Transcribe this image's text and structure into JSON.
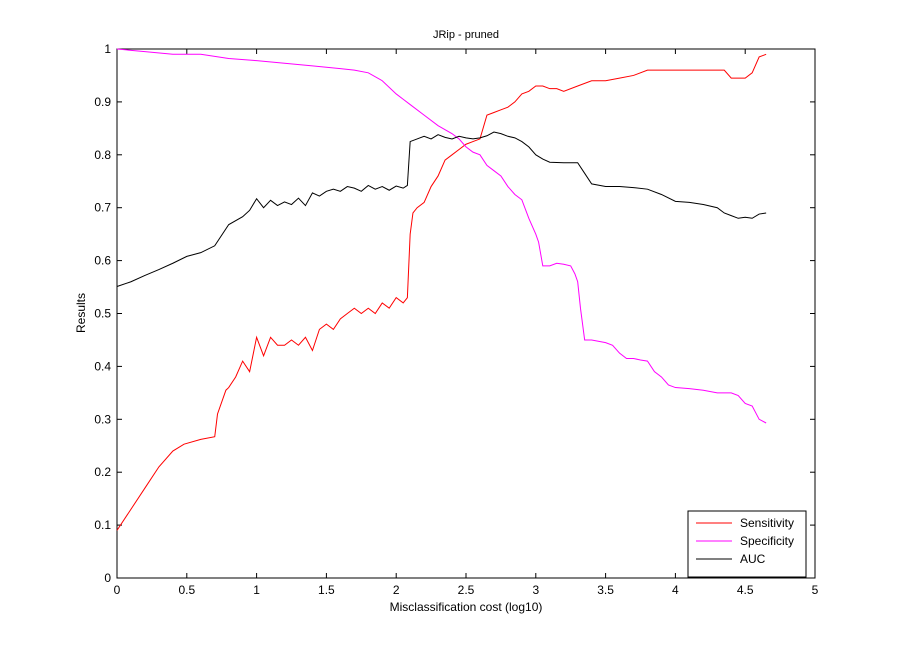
{
  "chart_data": {
    "type": "line",
    "title": "JRip - pruned",
    "xlabel": "Misclassification cost (log10)",
    "ylabel": "Results",
    "xlim": [
      0,
      5
    ],
    "ylim": [
      0,
      1
    ],
    "xticks": [
      "0",
      "0.5",
      "1",
      "1.5",
      "2",
      "2.5",
      "3",
      "3.5",
      "4",
      "4.5",
      "5"
    ],
    "yticks": [
      "0",
      "0.1",
      "0.2",
      "0.3",
      "0.4",
      "0.5",
      "0.6",
      "0.7",
      "0.8",
      "0.9",
      "1"
    ],
    "grid": false,
    "legend_position": "bottom-right",
    "series": [
      {
        "name": "Sensitivity",
        "color": "#ff0000",
        "x": [
          0,
          0.1,
          0.2,
          0.3,
          0.4,
          0.48,
          0.6,
          0.7,
          0.72,
          0.78,
          0.8,
          0.85,
          0.9,
          0.95,
          1.0,
          1.05,
          1.1,
          1.15,
          1.2,
          1.25,
          1.3,
          1.35,
          1.4,
          1.45,
          1.5,
          1.55,
          1.6,
          1.65,
          1.7,
          1.75,
          1.8,
          1.85,
          1.9,
          1.95,
          2.0,
          2.05,
          2.08,
          2.1,
          2.12,
          2.15,
          2.2,
          2.25,
          2.3,
          2.35,
          2.4,
          2.45,
          2.5,
          2.55,
          2.6,
          2.65,
          2.7,
          2.75,
          2.8,
          2.85,
          2.9,
          2.95,
          3.0,
          3.05,
          3.1,
          3.15,
          3.2,
          3.3,
          3.4,
          3.5,
          3.6,
          3.7,
          3.8,
          3.9,
          4.0,
          4.1,
          4.2,
          4.3,
          4.35,
          4.4,
          4.5,
          4.55,
          4.6,
          4.65
        ],
        "y": [
          0.09,
          0.13,
          0.17,
          0.21,
          0.24,
          0.253,
          0.262,
          0.267,
          0.31,
          0.355,
          0.36,
          0.38,
          0.41,
          0.39,
          0.455,
          0.42,
          0.455,
          0.44,
          0.44,
          0.45,
          0.44,
          0.455,
          0.43,
          0.47,
          0.48,
          0.47,
          0.49,
          0.5,
          0.51,
          0.5,
          0.51,
          0.5,
          0.52,
          0.51,
          0.53,
          0.52,
          0.53,
          0.65,
          0.69,
          0.7,
          0.71,
          0.74,
          0.76,
          0.79,
          0.8,
          0.81,
          0.82,
          0.825,
          0.83,
          0.875,
          0.88,
          0.885,
          0.89,
          0.9,
          0.915,
          0.92,
          0.93,
          0.93,
          0.925,
          0.925,
          0.92,
          0.93,
          0.94,
          0.94,
          0.945,
          0.95,
          0.96,
          0.96,
          0.96,
          0.96,
          0.96,
          0.96,
          0.96,
          0.945,
          0.945,
          0.955,
          0.985,
          0.99
        ]
      },
      {
        "name": "Specificity",
        "color": "#ff00ff",
        "x": [
          0,
          0.2,
          0.4,
          0.6,
          0.8,
          1.0,
          1.2,
          1.4,
          1.6,
          1.7,
          1.8,
          1.9,
          2.0,
          2.05,
          2.1,
          2.2,
          2.3,
          2.4,
          2.45,
          2.5,
          2.55,
          2.6,
          2.65,
          2.7,
          2.75,
          2.8,
          2.85,
          2.9,
          2.95,
          3.0,
          3.02,
          3.05,
          3.1,
          3.15,
          3.2,
          3.25,
          3.28,
          3.3,
          3.32,
          3.35,
          3.4,
          3.5,
          3.55,
          3.6,
          3.65,
          3.7,
          3.75,
          3.8,
          3.85,
          3.9,
          3.95,
          4.0,
          4.1,
          4.2,
          4.3,
          4.4,
          4.45,
          4.5,
          4.55,
          4.6,
          4.65
        ],
        "y": [
          1.0,
          0.995,
          0.99,
          0.99,
          0.982,
          0.978,
          0.973,
          0.968,
          0.963,
          0.96,
          0.955,
          0.94,
          0.915,
          0.905,
          0.895,
          0.875,
          0.855,
          0.84,
          0.83,
          0.815,
          0.805,
          0.8,
          0.78,
          0.77,
          0.76,
          0.74,
          0.725,
          0.715,
          0.68,
          0.65,
          0.635,
          0.59,
          0.59,
          0.595,
          0.593,
          0.59,
          0.575,
          0.56,
          0.51,
          0.45,
          0.45,
          0.445,
          0.44,
          0.425,
          0.415,
          0.415,
          0.412,
          0.41,
          0.39,
          0.38,
          0.365,
          0.36,
          0.358,
          0.355,
          0.35,
          0.35,
          0.345,
          0.33,
          0.325,
          0.3,
          0.293
        ]
      },
      {
        "name": "AUC",
        "color": "#000000",
        "x": [
          0,
          0.1,
          0.2,
          0.3,
          0.4,
          0.5,
          0.6,
          0.7,
          0.8,
          0.9,
          0.95,
          1.0,
          1.05,
          1.1,
          1.15,
          1.2,
          1.25,
          1.3,
          1.35,
          1.4,
          1.45,
          1.5,
          1.55,
          1.6,
          1.65,
          1.7,
          1.75,
          1.8,
          1.85,
          1.9,
          1.95,
          2.0,
          2.05,
          2.08,
          2.1,
          2.15,
          2.2,
          2.25,
          2.3,
          2.35,
          2.4,
          2.45,
          2.5,
          2.55,
          2.6,
          2.65,
          2.7,
          2.75,
          2.8,
          2.85,
          2.9,
          2.95,
          3.0,
          3.05,
          3.1,
          3.2,
          3.3,
          3.35,
          3.4,
          3.5,
          3.6,
          3.7,
          3.8,
          3.9,
          4.0,
          4.1,
          4.2,
          4.3,
          4.35,
          4.4,
          4.45,
          4.5,
          4.55,
          4.6,
          4.65
        ],
        "y": [
          0.551,
          0.56,
          0.572,
          0.583,
          0.595,
          0.608,
          0.615,
          0.628,
          0.668,
          0.683,
          0.695,
          0.717,
          0.7,
          0.714,
          0.704,
          0.711,
          0.706,
          0.718,
          0.704,
          0.728,
          0.722,
          0.731,
          0.735,
          0.731,
          0.74,
          0.737,
          0.731,
          0.742,
          0.735,
          0.74,
          0.733,
          0.741,
          0.737,
          0.742,
          0.825,
          0.83,
          0.835,
          0.83,
          0.838,
          0.833,
          0.83,
          0.835,
          0.832,
          0.83,
          0.832,
          0.836,
          0.843,
          0.84,
          0.835,
          0.832,
          0.825,
          0.815,
          0.8,
          0.792,
          0.786,
          0.785,
          0.785,
          0.765,
          0.745,
          0.74,
          0.74,
          0.738,
          0.735,
          0.725,
          0.712,
          0.71,
          0.706,
          0.7,
          0.69,
          0.685,
          0.68,
          0.682,
          0.68,
          0.688,
          0.69
        ]
      }
    ]
  }
}
